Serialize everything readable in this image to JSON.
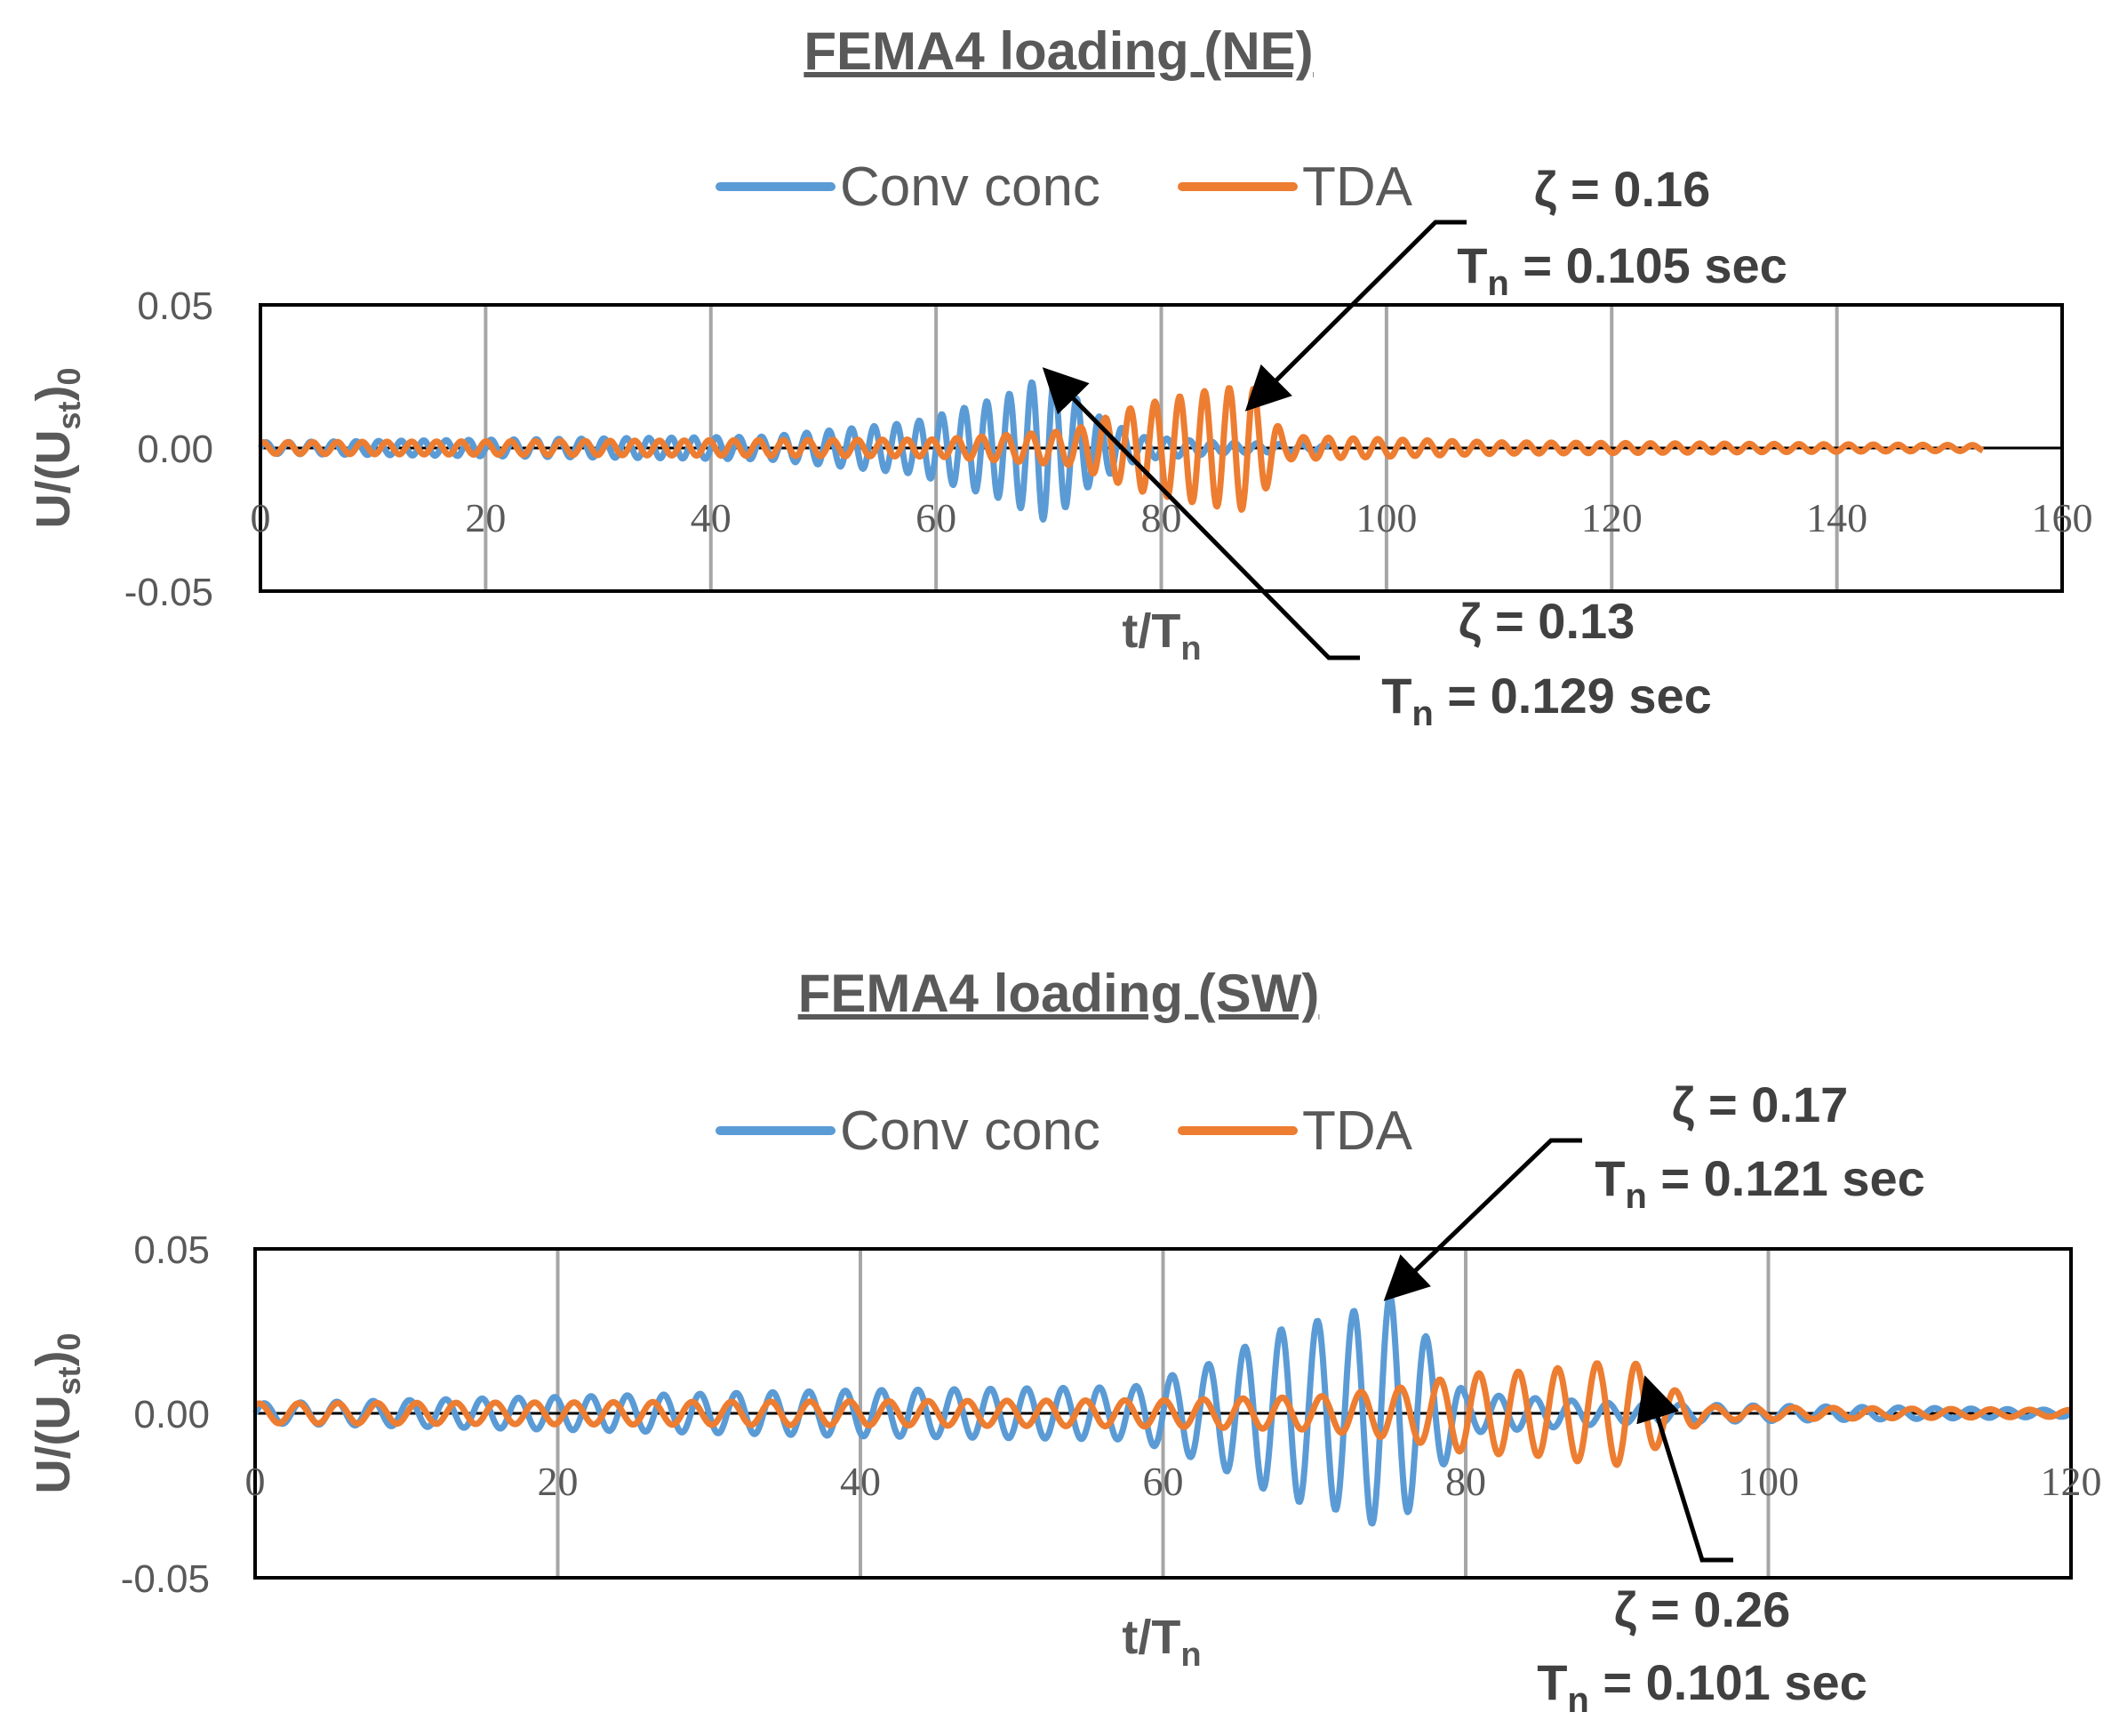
{
  "colors": {
    "conv_conc": "#5B9BD5",
    "tda": "#ED7D31",
    "grid": "#A6A6A6",
    "axis": "#000000",
    "text": "#595959"
  },
  "chart_data": [
    {
      "type": "line",
      "title": "FEMA4 loading (NE)",
      "xlabel": "t/Tn",
      "ylabel": "U/(Ust)0",
      "xlim": [
        0,
        160
      ],
      "ylim": [
        -0.05,
        0.05
      ],
      "x_ticks": [
        "0",
        "20",
        "40",
        "60",
        "80",
        "100",
        "120",
        "140",
        "160"
      ],
      "y_ticks": [
        "0.05",
        "0.00",
        "-0.05"
      ],
      "grid": "vertical",
      "legend": "top-center",
      "series": [
        {
          "name": "Conv conc",
          "color": "#5B9BD5",
          "x_end": 95,
          "period": 2.0,
          "envelope": [
            [
              0,
              0.002
            ],
            [
              45,
              0.004
            ],
            [
              58,
              0.009
            ],
            [
              66,
              0.018
            ],
            [
              70,
              0.026
            ],
            [
              74,
              0.012
            ],
            [
              78,
              0.004
            ],
            [
              85,
              0.002
            ],
            [
              95,
              0.001
            ]
          ]
        },
        {
          "name": "TDA",
          "color": "#ED7D31",
          "x_end": 153,
          "period": 2.2,
          "envelope": [
            [
              0,
              0.002
            ],
            [
              60,
              0.003
            ],
            [
              72,
              0.006
            ],
            [
              78,
              0.015
            ],
            [
              84,
              0.02
            ],
            [
              88,
              0.022
            ],
            [
              91,
              0.004
            ],
            [
              110,
              0.002
            ],
            [
              153,
              0.001
            ]
          ]
        }
      ],
      "annotations": [
        {
          "zeta": "ζ = 0.16",
          "tn": "T",
          "tn_sub": "n",
          "tn_value": " = 0.105 sec",
          "series": "TDA",
          "point": [
            88,
            0.015
          ]
        },
        {
          "zeta": "ζ = 0.13",
          "tn": "T",
          "tn_sub": "n",
          "tn_value": " = 0.129 sec",
          "series": "Conv conc",
          "point": [
            70,
            0.026
          ]
        }
      ]
    },
    {
      "type": "line",
      "title": "FEMA4 loading (SW)",
      "xlabel": "t/Tn",
      "ylabel": "U/(Ust)0",
      "xlim": [
        0,
        120
      ],
      "ylim": [
        -0.05,
        0.05
      ],
      "x_ticks": [
        "0",
        "20",
        "40",
        "60",
        "80",
        "100",
        "120"
      ],
      "y_ticks": [
        "0.05",
        "0.00",
        "-0.05"
      ],
      "grid": "vertical",
      "legend": "top-center",
      "series": [
        {
          "name": "Conv conc",
          "color": "#5B9BD5",
          "x_end": 120,
          "period": 2.4,
          "envelope": [
            [
              0,
              0.003
            ],
            [
              20,
              0.005
            ],
            [
              40,
              0.007
            ],
            [
              58,
              0.008
            ],
            [
              63,
              0.015
            ],
            [
              68,
              0.026
            ],
            [
              72,
              0.03
            ],
            [
              75,
              0.036
            ],
            [
              77,
              0.026
            ],
            [
              80,
              0.006
            ],
            [
              90,
              0.003
            ],
            [
              120,
              0.001
            ]
          ]
        },
        {
          "name": "TDA",
          "color": "#ED7D31",
          "x_end": 120,
          "period": 2.6,
          "envelope": [
            [
              0,
              0.003
            ],
            [
              60,
              0.004
            ],
            [
              70,
              0.005
            ],
            [
              76,
              0.008
            ],
            [
              80,
              0.012
            ],
            [
              85,
              0.013
            ],
            [
              88,
              0.015
            ],
            [
              91,
              0.016
            ],
            [
              93,
              0.009
            ],
            [
              96,
              0.002
            ],
            [
              120,
              0.001
            ]
          ]
        }
      ],
      "annotations": [
        {
          "zeta": "ζ = 0.17",
          "tn": "T",
          "tn_sub": "n",
          "tn_value": " = 0.121 sec",
          "series": "Conv conc",
          "point": [
            75,
            0.036
          ]
        },
        {
          "zeta": "ζ = 0.26",
          "tn": "T",
          "tn_sub": "n",
          "tn_value": " = 0.101 sec",
          "series": "TDA",
          "point": [
            92,
            0.009
          ]
        }
      ]
    }
  ]
}
